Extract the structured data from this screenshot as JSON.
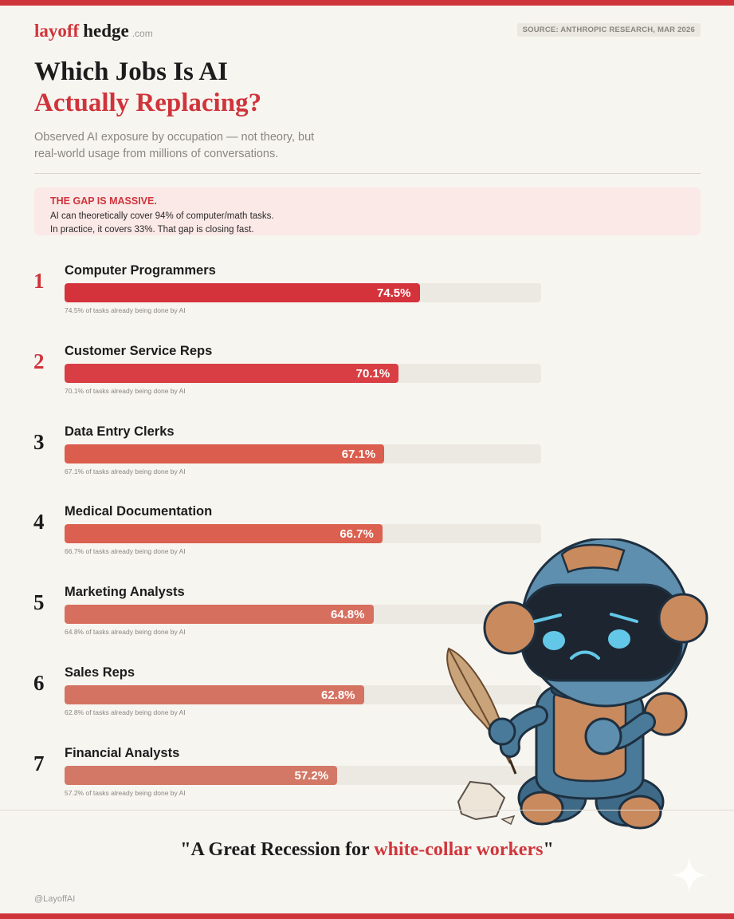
{
  "brand": {
    "part1": "layoff",
    "part2": "hedge",
    "suffix": ".com"
  },
  "source_badge": "SOURCE: ANTHROPIC RESEARCH, MAR 2026",
  "title": {
    "line1": "Which Jobs Is AI",
    "line2": "Actually Replacing?"
  },
  "subtitle": "Observed AI exposure by occupation — not theory, but real-world usage from millions of conversations.",
  "callout": {
    "heading": "THE GAP IS MASSIVE.",
    "line1": "AI can theoretically cover 94% of computer/math tasks.",
    "line2": "In practice, it covers 33%. That gap is closing fast."
  },
  "colors": {
    "accent": "#d0343b",
    "bar_colors": [
      "#d5333c",
      "#d83e43",
      "#db5d4d",
      "#dc604f",
      "#d76f5f",
      "#d57363",
      "#d37866"
    ]
  },
  "chart_data": {
    "type": "bar",
    "orientation": "horizontal",
    "xlim": [
      0,
      100
    ],
    "categories": [
      "Computer Programmers",
      "Customer Service Reps",
      "Data Entry Clerks",
      "Medical Documentation",
      "Marketing Analysts",
      "Sales Reps",
      "Financial Analysts"
    ],
    "values": [
      74.5,
      70.1,
      67.1,
      66.7,
      64.8,
      62.8,
      57.2
    ],
    "ranks": [
      "1",
      "2",
      "3",
      "4",
      "5",
      "6",
      "7"
    ],
    "value_labels": [
      "74.5%",
      "70.1%",
      "67.1%",
      "66.7%",
      "64.8%",
      "62.8%",
      "57.2%"
    ],
    "notes": [
      "74.5% of tasks already being done by AI",
      "70.1% of tasks already being done by AI",
      "67.1% of tasks already being done by AI",
      "66.7% of tasks already being done by AI",
      "64.8% of tasks already being done by AI",
      "62.8% of tasks already being done by AI",
      "57.2% of tasks already being done by AI"
    ]
  },
  "quote": {
    "open": "\"A Great Recession for ",
    "highlight": "white-collar workers",
    "close": "\""
  },
  "handle": "@LayoffAI"
}
